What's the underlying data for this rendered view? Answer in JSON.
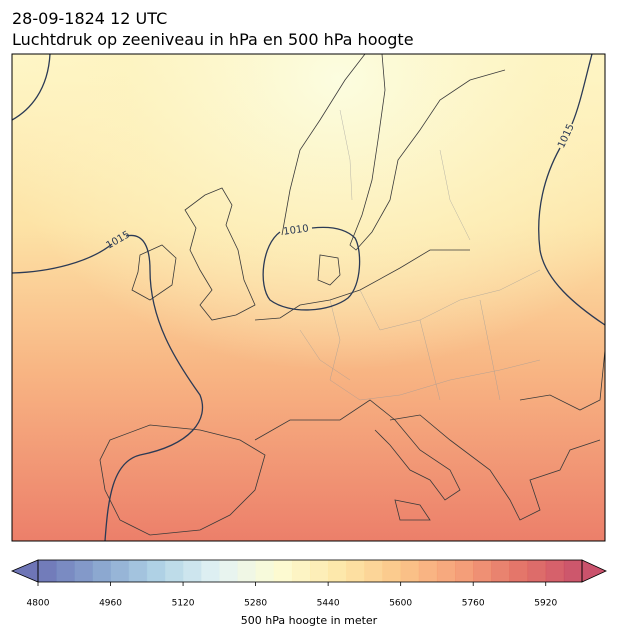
{
  "header": {
    "date": "28-09-1824 12 UTC",
    "title": "Luchtdruk op zeeniveau in hPa en 500 hPa hoogte"
  },
  "isobar_labels": [
    1015,
    1010,
    1015
  ],
  "colorbar": {
    "label": "500 hPa hoogte in meter",
    "lim": [
      4800,
      6000
    ],
    "step": 40,
    "ticks": [
      4800,
      4960,
      5120,
      5280,
      5440,
      5600,
      5760,
      5920
    ],
    "extend": "both",
    "colors": [
      "#5e66ae",
      "#7d9bca",
      "#a8cfe3",
      "#e2f2f3",
      "#fdfbce",
      "#fde4a0",
      "#fbbf7d",
      "#f4956b",
      "#e06559",
      "#c43f5c"
    ]
  }
}
